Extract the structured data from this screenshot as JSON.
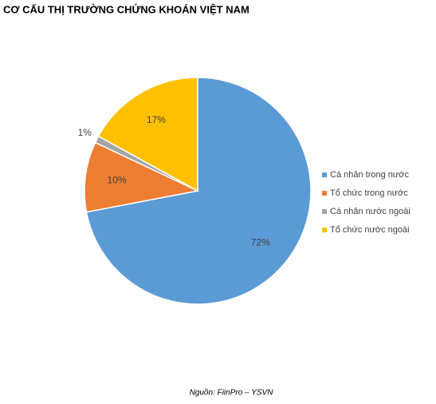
{
  "chart_data": {
    "type": "pie",
    "title": "CƠ CẤU THỊ TRƯỜNG CHỨNG KHOÁN VIỆT NAM",
    "categories": [
      "Cá nhân trong nước",
      "Tổ chức trong nước",
      "Cá nhân nước ngoài",
      "Tổ chức nước ngoài"
    ],
    "values": [
      72,
      10,
      1,
      17
    ],
    "value_labels": [
      "72%",
      "10%",
      "1%",
      "17%"
    ],
    "colors": [
      "#5b9bd5",
      "#ed7d31",
      "#a5a5a5",
      "#ffc000"
    ],
    "legend": "right",
    "source": "Nguồn: FiinPro – YSVN"
  }
}
